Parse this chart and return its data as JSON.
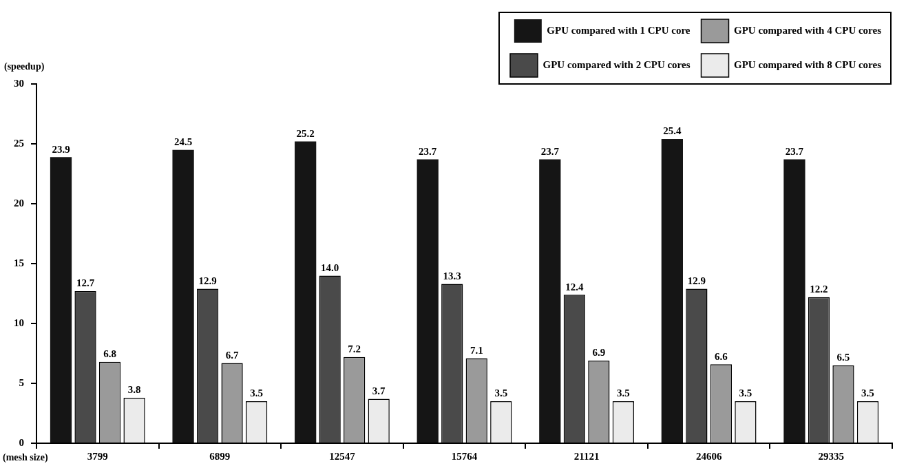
{
  "chart_data": {
    "type": "bar",
    "ylabel": "(speedup)",
    "xlabel": "(mesh size)",
    "categories": [
      "3799",
      "6899",
      "12547",
      "15764",
      "21121",
      "24606",
      "29335"
    ],
    "series": [
      {
        "name": "GPU compared with 1 CPU core",
        "color": "#151515",
        "values": [
          23.9,
          24.5,
          25.2,
          23.7,
          23.7,
          25.4,
          23.7
        ],
        "value_labels": [
          "23.9",
          "24.5",
          "25.2",
          "23.7",
          "23.7",
          "25.4",
          "23.7"
        ]
      },
      {
        "name": "GPU compared with 2 CPU cores",
        "color": "#4a4a4a",
        "values": [
          12.7,
          12.9,
          14.0,
          13.3,
          12.4,
          12.9,
          12.2
        ],
        "value_labels": [
          "12.7",
          "12.9",
          "14.0",
          "13.3",
          "12.4",
          "12.9",
          "12.2"
        ]
      },
      {
        "name": "GPU compared with 4 CPU cores",
        "color": "#9a9a9a",
        "values": [
          6.8,
          6.7,
          7.2,
          7.1,
          6.9,
          6.6,
          6.5
        ],
        "value_labels": [
          "6.8",
          "6.7",
          "7.2",
          "7.1",
          "6.9",
          "6.6",
          "6.5"
        ]
      },
      {
        "name": "GPU compared with 8 CPU cores",
        "color": "#ebebeb",
        "values": [
          3.8,
          3.5,
          3.7,
          3.5,
          3.5,
          3.5,
          3.5
        ],
        "value_labels": [
          "3.8",
          "3.5",
          "3.7",
          "3.5",
          "3.5",
          "3.5",
          "3.5"
        ]
      }
    ],
    "ylim": [
      0,
      30
    ],
    "yticks": [
      0,
      5,
      10,
      15,
      20,
      25,
      30
    ],
    "grid": false,
    "legend": "top right"
  }
}
